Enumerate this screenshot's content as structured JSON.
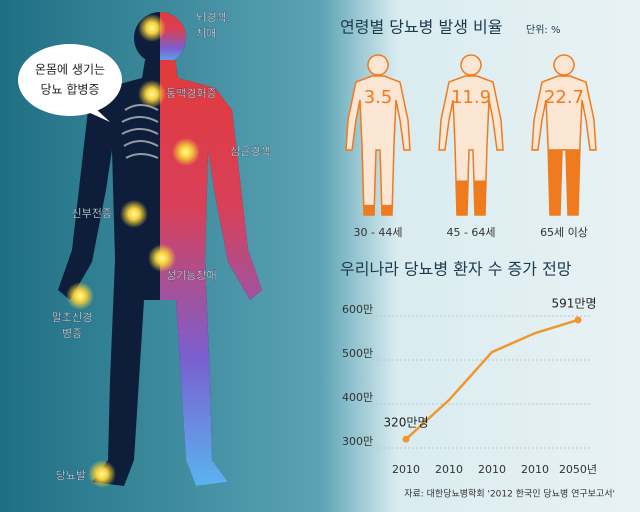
{
  "body": {
    "bubble": [
      "온몸에 생기는",
      "당뇨 합병증"
    ],
    "labels": [
      [
        "뇌경색,",
        "치매"
      ],
      [
        "동맥경화증"
      ],
      [
        "심근경색"
      ],
      [
        "신부전증"
      ],
      [
        "성기능장애"
      ],
      [
        "말초신경",
        "병증"
      ],
      [
        "당뇨발"
      ]
    ]
  },
  "chart_data": [
    {
      "type": "pictogram",
      "title": "연령별 당뇨병 발생 비율",
      "unit": "단위: %",
      "categories": [
        "30 - 44세",
        "45 - 64세",
        "65세 이상"
      ],
      "values": [
        3.5,
        11.9,
        22.7
      ],
      "color": "#f07a1e"
    },
    {
      "type": "line",
      "title": "우리나라 당뇨병 환자 수 증가 전망",
      "categories": [
        "2010",
        "2010",
        "2010",
        "2010",
        "2050년"
      ],
      "values": [
        320,
        409,
        518,
        561,
        591
      ],
      "value_labels": [
        "320만명",
        null,
        null,
        null,
        "591만명"
      ],
      "color": "#f0962e",
      "ylim": [
        300,
        600
      ],
      "yticks": [
        {
          "value": 600,
          "label": "600만"
        },
        {
          "value": 500,
          "label": "500만"
        },
        {
          "value": 400,
          "label": "400만"
        },
        {
          "value": 300,
          "label": "300만"
        }
      ],
      "source": "자료: 대한당뇨병학회 '2012 한국인 당뇨병 연구보고서'"
    }
  ]
}
